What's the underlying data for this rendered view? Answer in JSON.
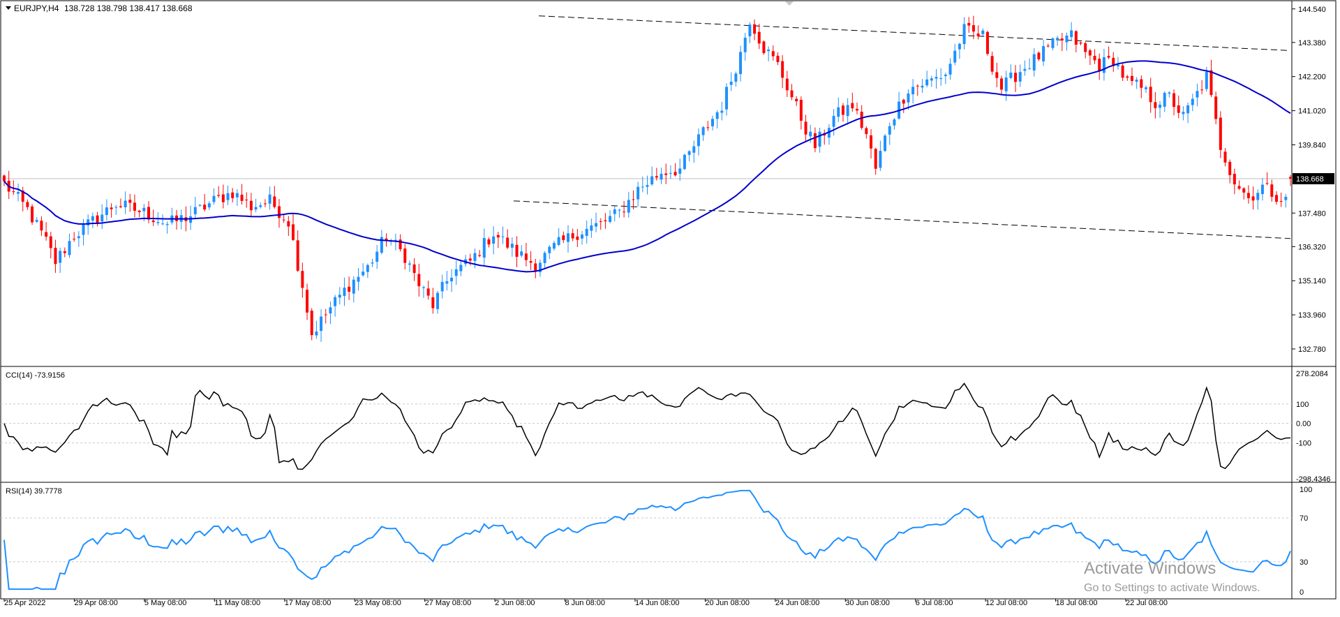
{
  "window": {
    "symbol_label": "EURJPY,H4",
    "ohlc_text": "138.728 138.798 138.417 138.668",
    "current_price_label": "138.668"
  },
  "colors": {
    "bull": "#1e90ff",
    "bear": "#ff0000",
    "ma": "#0000cd",
    "cci_line": "#000000",
    "rsi_line": "#1e90ff",
    "trendline": "#000000",
    "grid": "#c8c8c8"
  },
  "chart_data": [
    {
      "type": "candlestick",
      "title": "EURJPY,H4",
      "ylim": [
        132.2,
        144.8
      ],
      "y_ticks": [
        "144.540",
        "143.380",
        "142.200",
        "141.020",
        "139.840",
        "138.668",
        "137.480",
        "136.320",
        "135.140",
        "133.960",
        "132.780"
      ],
      "x_tick_labels": [
        "25 Apr 2022",
        "29 Apr 08:00",
        "5 May 08:00",
        "11 May 08:00",
        "17 May 08:00",
        "23 May 08:00",
        "27 May 08:00",
        "2 Jun 08:00",
        "8 Jun 08:00",
        "14 Jun 08:00",
        "20 Jun 08:00",
        "24 Jun 08:00",
        "30 Jun 08:00",
        "6 Jul 08:00",
        "12 Jul 08:00",
        "18 Jul 08:00",
        "22 Jul 08:00"
      ],
      "candle_count": 277,
      "close_path": [
        [
          0,
          138.5
        ],
        [
          5,
          137.6
        ],
        [
          9,
          136.5
        ],
        [
          11,
          135.8
        ],
        [
          15,
          136.7
        ],
        [
          19,
          137.2
        ],
        [
          24,
          137.8
        ],
        [
          30,
          137.5
        ],
        [
          35,
          137.1
        ],
        [
          40,
          137.4
        ],
        [
          45,
          137.9
        ],
        [
          49,
          138.2
        ],
        [
          53,
          137.7
        ],
        [
          57,
          137.9
        ],
        [
          61,
          137.2
        ],
        [
          64,
          135.0
        ],
        [
          66,
          133.3
        ],
        [
          70,
          134.2
        ],
        [
          74,
          135.0
        ],
        [
          78,
          135.6
        ],
        [
          82,
          136.7
        ],
        [
          86,
          136.0
        ],
        [
          89,
          135.0
        ],
        [
          92,
          134.3
        ],
        [
          96,
          135.4
        ],
        [
          100,
          135.8
        ],
        [
          105,
          136.8
        ],
        [
          110,
          136.1
        ],
        [
          114,
          135.7
        ],
        [
          118,
          136.3
        ],
        [
          123,
          136.8
        ],
        [
          128,
          137.1
        ],
        [
          132,
          137.5
        ],
        [
          136,
          138.3
        ],
        [
          141,
          138.9
        ],
        [
          145,
          139.0
        ],
        [
          150,
          140.3
        ],
        [
          154,
          141.2
        ],
        [
          158,
          143.0
        ],
        [
          160,
          144.2
        ],
        [
          163,
          143.2
        ],
        [
          166,
          142.6
        ],
        [
          169,
          141.5
        ],
        [
          172,
          140.4
        ],
        [
          174,
          139.8
        ],
        [
          178,
          140.8
        ],
        [
          182,
          141.2
        ],
        [
          185,
          140.2
        ],
        [
          187,
          139.0
        ],
        [
          190,
          140.6
        ],
        [
          194,
          141.8
        ],
        [
          198,
          142.0
        ],
        [
          202,
          142.3
        ],
        [
          206,
          143.8
        ],
        [
          210,
          143.6
        ],
        [
          212,
          142.6
        ],
        [
          214,
          141.8
        ],
        [
          218,
          142.4
        ],
        [
          222,
          142.9
        ],
        [
          226,
          143.4
        ],
        [
          229,
          143.6
        ],
        [
          232,
          143.0
        ],
        [
          235,
          142.6
        ],
        [
          238,
          142.8
        ],
        [
          241,
          142.0
        ],
        [
          244,
          141.8
        ],
        [
          247,
          141.3
        ],
        [
          250,
          141.5
        ],
        [
          253,
          140.8
        ],
        [
          256,
          141.6
        ],
        [
          258,
          142.2
        ],
        [
          261,
          139.8
        ],
        [
          264,
          138.6
        ],
        [
          267,
          138.0
        ],
        [
          270,
          138.4
        ],
        [
          274,
          138.0
        ],
        [
          277,
          137.7
        ]
      ],
      "trendline_upper": {
        "from": [
          "8 Jun",
          144.3
        ],
        "to": [
          "right edge",
          143.1
        ],
        "style": "dashed"
      },
      "trendline_lower": {
        "from": [
          "2 Jun",
          137.9
        ],
        "to": [
          "right edge",
          136.6
        ],
        "style": "dashed"
      }
    },
    {
      "type": "line",
      "title": "CCI(14) -73.9156",
      "series": [
        {
          "name": "CCI(14)",
          "last_value": -73.9156
        }
      ],
      "ylim": [
        -298.4346,
        278.2084
      ],
      "y_ticks": [
        "278.2084",
        "100",
        "0.00",
        "-100",
        "-298.4346"
      ],
      "levels": [
        100,
        0,
        -100
      ]
    },
    {
      "type": "line",
      "title": "RSI(14) 39.7778",
      "series": [
        {
          "name": "RSI(14)",
          "last_value": 39.7778
        }
      ],
      "ylim": [
        0,
        100
      ],
      "y_ticks": [
        "100",
        "70",
        "30",
        "0"
      ],
      "levels": [
        70,
        30
      ]
    }
  ],
  "watermark": {
    "title": "Activate Windows",
    "subtitle": "Go to Settings to activate Windows."
  }
}
